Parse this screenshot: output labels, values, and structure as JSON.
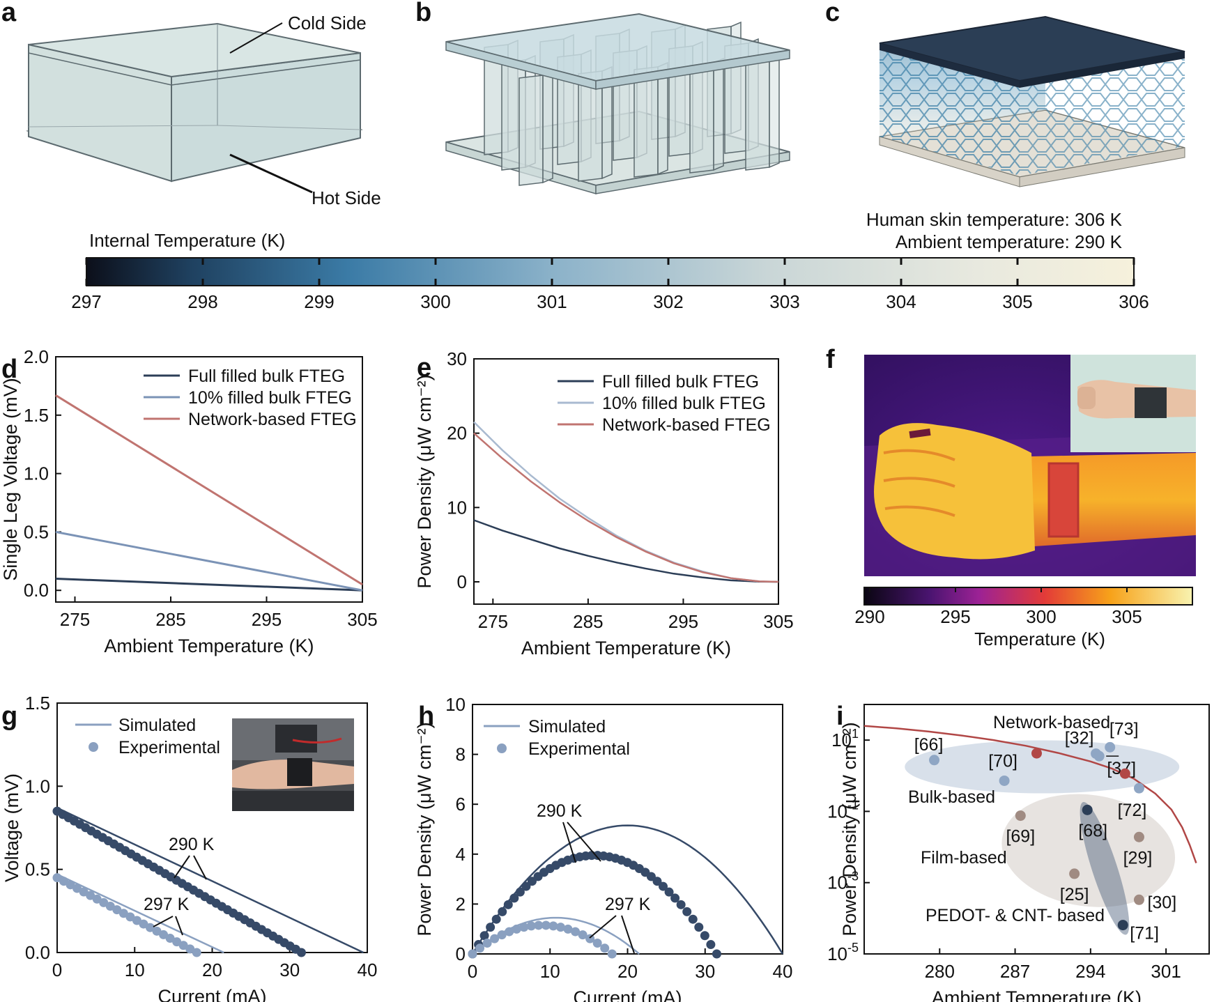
{
  "panels": {
    "a": {
      "label": "a",
      "cold_side": "Cold Side",
      "hot_side": "Hot Side"
    },
    "b": {
      "label": "b"
    },
    "c": {
      "label": "c"
    }
  },
  "conditions": {
    "skin": "Human skin temperature: 306 K",
    "ambient": "Ambient temperature: 290 K"
  },
  "colorbar_top": {
    "title": "Internal Temperature (K)",
    "ticks": [
      "297",
      "298",
      "299",
      "300",
      "301",
      "302",
      "303",
      "304",
      "305",
      "306"
    ],
    "colors": {
      "cold": "#0c0f1a",
      "mid": "#5b97bd",
      "light": "#dde4e1",
      "hot": "#f6f1dc"
    }
  },
  "panel_f": {
    "label": "f",
    "colorbar_ticks": [
      "290",
      "295",
      "300",
      "305"
    ],
    "colorbar_label": "Temperature (K)",
    "colors": {
      "low": "#0a0612",
      "purple": "#7a1f9c",
      "red": "#e33b38",
      "orange": "#f7a21a",
      "yellow": "#f8f3b0"
    }
  },
  "chart_data": [
    {
      "id": "d",
      "label": "d",
      "type": "line",
      "xlabel": "Ambient Temperature (K)",
      "ylabel": "Single Leg Voltage (mV)",
      "xlim": [
        273,
        305
      ],
      "ylim": [
        -0.1,
        2.0
      ],
      "xticks": [
        275,
        285,
        295,
        305
      ],
      "yticks": [
        0.0,
        0.5,
        1.0,
        1.5,
        2.0
      ],
      "ytick_labels": [
        "0.0",
        "0.5",
        "1.0",
        "1.5",
        "2.0"
      ],
      "series": [
        {
          "name": "Full filled bulk FTEG",
          "color": "#2c3e57",
          "x": [
            273,
            305
          ],
          "y": [
            0.1,
            0.0
          ]
        },
        {
          "name": "10% filled bulk FTEG",
          "color": "#7b93b6",
          "x": [
            273,
            305
          ],
          "y": [
            0.5,
            0.0
          ]
        },
        {
          "name": "Network-based FTEG",
          "color": "#c07470",
          "x": [
            273,
            305
          ],
          "y": [
            1.67,
            0.05
          ]
        }
      ]
    },
    {
      "id": "e",
      "label": "e",
      "type": "line",
      "xlabel": "Ambient Temperature (K)",
      "ylabel": "Power Density (μW cm⁻²)",
      "xlim": [
        273,
        305
      ],
      "ylim": [
        -3,
        30
      ],
      "xticks": [
        275,
        285,
        295,
        305
      ],
      "yticks": [
        0,
        10,
        20,
        30
      ],
      "ytick_labels": [
        "0",
        "10",
        "20",
        "30"
      ],
      "series": [
        {
          "name": "Full filled bulk FTEG",
          "color": "#2c3e57",
          "x": [
            273,
            276,
            279,
            282,
            285,
            288,
            291,
            294,
            297,
            300,
            303,
            305
          ],
          "y": [
            8.3,
            6.9,
            5.7,
            4.5,
            3.5,
            2.6,
            1.8,
            1.1,
            0.6,
            0.2,
            0.03,
            0
          ]
        },
        {
          "name": "10% filled bulk FTEG",
          "color": "#a9bad0",
          "x": [
            273,
            276,
            279,
            282,
            285,
            288,
            291,
            294,
            297,
            300,
            303,
            305
          ],
          "y": [
            21.5,
            17.7,
            14.3,
            11.2,
            8.6,
            6.2,
            4.2,
            2.6,
            1.4,
            0.5,
            0.06,
            0
          ]
        },
        {
          "name": "Network-based FTEG",
          "color": "#c07470",
          "x": [
            273,
            276,
            279,
            282,
            285,
            288,
            291,
            294,
            297,
            300,
            303,
            305
          ],
          "y": [
            20.0,
            16.6,
            13.5,
            10.7,
            8.2,
            6.0,
            4.1,
            2.5,
            1.3,
            0.5,
            0.06,
            0
          ]
        }
      ]
    },
    {
      "id": "g",
      "label": "g",
      "type": "line",
      "xlabel": "Current (mA)",
      "ylabel": "Voltage (mV)",
      "xlim": [
        0,
        40
      ],
      "ylim": [
        0,
        1.5
      ],
      "xticks": [
        0,
        10,
        20,
        30,
        40
      ],
      "yticks": [
        0.0,
        0.5,
        1.0,
        1.5
      ],
      "ytick_labels": [
        "0.0",
        "0.5",
        "1.0",
        "1.5"
      ],
      "legend": {
        "simulated": "Simulated",
        "experimental": "Experimental"
      },
      "annotations": [
        "290 K",
        "297 K"
      ],
      "series": [
        {
          "name": "Simulated 290 K",
          "color": "#364a68",
          "x": [
            0,
            39.5
          ],
          "y": [
            0.87,
            0
          ]
        },
        {
          "name": "Simulated 297 K",
          "color": "#8aa0c0",
          "x": [
            0,
            21.5
          ],
          "y": [
            0.47,
            0
          ]
        },
        {
          "name": "Experimental 290 K",
          "color": "#364a68",
          "marker": "dot",
          "x_range": [
            0,
            31.5
          ],
          "y_intercept": 0.85,
          "n": 44
        },
        {
          "name": "Experimental 297 K",
          "color": "#8aa0c0",
          "marker": "dot",
          "x_range": [
            0,
            18
          ],
          "y_intercept": 0.45,
          "n": 22
        }
      ]
    },
    {
      "id": "h",
      "label": "h",
      "type": "line",
      "xlabel": "Current (mA)",
      "ylabel": "Power Density (μW cm⁻²)",
      "xlim": [
        0,
        40
      ],
      "ylim": [
        0,
        10
      ],
      "xticks": [
        0,
        10,
        20,
        30,
        40
      ],
      "yticks": [
        0,
        2,
        4,
        6,
        8,
        10
      ],
      "ytick_labels": [
        "0",
        "2",
        "4",
        "6",
        "8",
        "10"
      ],
      "legend": {
        "simulated": "Simulated",
        "experimental": "Experimental"
      },
      "annotations": [
        "290 K",
        "297 K"
      ],
      "series": [
        {
          "name": "Simulated 290 K",
          "color": "#364a68",
          "x_range": [
            0,
            40
          ],
          "peak": 5.15
        },
        {
          "name": "Simulated 297 K",
          "color": "#8aa0c0",
          "x_range": [
            0,
            21.5
          ],
          "peak": 1.45
        },
        {
          "name": "Experimental 290 K",
          "color": "#364a68",
          "marker": "dot",
          "x_range": [
            0,
            31.5
          ],
          "peak": 3.95,
          "n": 42
        },
        {
          "name": "Experimental 297 K",
          "color": "#8aa0c0",
          "marker": "dot",
          "x_range": [
            0,
            18
          ],
          "peak": 1.15,
          "n": 20
        }
      ]
    },
    {
      "id": "i",
      "label": "i",
      "type": "scatter",
      "xlabel": "Ambient Temperature (K)",
      "ylabel": "Power Density (μW cm⁻²)",
      "xlim": [
        273,
        305
      ],
      "ylim_log10": [
        -5,
        2
      ],
      "xticks": [
        280,
        287,
        294,
        301
      ],
      "yticks": [
        -5,
        -3,
        -1,
        1
      ],
      "regions": [
        {
          "name": "Bulk-based",
          "color": "#8fa6c4"
        },
        {
          "name": "Film-based",
          "color": "#b0a299"
        },
        {
          "name": "PEDOT- & CNT- based",
          "color": "#4a5d7a"
        },
        {
          "name": "Network-based",
          "color": "#b14746"
        }
      ],
      "curve": {
        "name": "Network-based",
        "color": "#b14746",
        "x": [
          273,
          276,
          279,
          282,
          285,
          288,
          291,
          294,
          296,
          298,
          300,
          301.5,
          302.5,
          303.2,
          303.8
        ],
        "log10y": [
          1.4,
          1.33,
          1.24,
          1.13,
          1.0,
          0.84,
          0.64,
          0.4,
          0.2,
          -0.08,
          -0.5,
          -0.95,
          -1.45,
          -1.95,
          -2.45
        ]
      },
      "points": [
        {
          "ref": "[66]",
          "x": 279.5,
          "log10y": 0.44,
          "color": "#8fa6c4"
        },
        {
          "ref": "[70]",
          "x": 286.0,
          "log10y": -0.14,
          "color": "#8fa6c4"
        },
        {
          "ref": "[32]",
          "x": 294.5,
          "log10y": 0.62,
          "color": "#8fa6c4"
        },
        {
          "ref": "[73]",
          "x": 295.8,
          "log10y": 0.8,
          "color": "#8fa6c4"
        },
        {
          "ref": "[37]",
          "x": 294.8,
          "log10y": 0.55,
          "color": "#8fa6c4"
        },
        {
          "ref": "[72]",
          "x": 298.5,
          "log10y": -0.35,
          "color": "#8fa6c4"
        },
        {
          "ref": "",
          "x": 289.0,
          "log10y": 0.63,
          "color": "#b14746"
        },
        {
          "ref": "",
          "x": 297.2,
          "log10y": 0.06,
          "color": "#b14746"
        },
        {
          "ref": "[69]",
          "x": 287.5,
          "log10y": -1.12,
          "color": "#a08b82"
        },
        {
          "ref": "[29]",
          "x": 298.5,
          "log10y": -1.72,
          "color": "#a08b82"
        },
        {
          "ref": "[25]",
          "x": 292.5,
          "log10y": -2.75,
          "color": "#a08b82"
        },
        {
          "ref": "[30]",
          "x": 298.5,
          "log10y": -3.48,
          "color": "#a08b82"
        },
        {
          "ref": "[68]",
          "x": 293.7,
          "log10y": -0.96,
          "color": "#2c3e57"
        },
        {
          "ref": "[71]",
          "x": 297.0,
          "log10y": -4.19,
          "color": "#2c3e57"
        }
      ]
    }
  ]
}
